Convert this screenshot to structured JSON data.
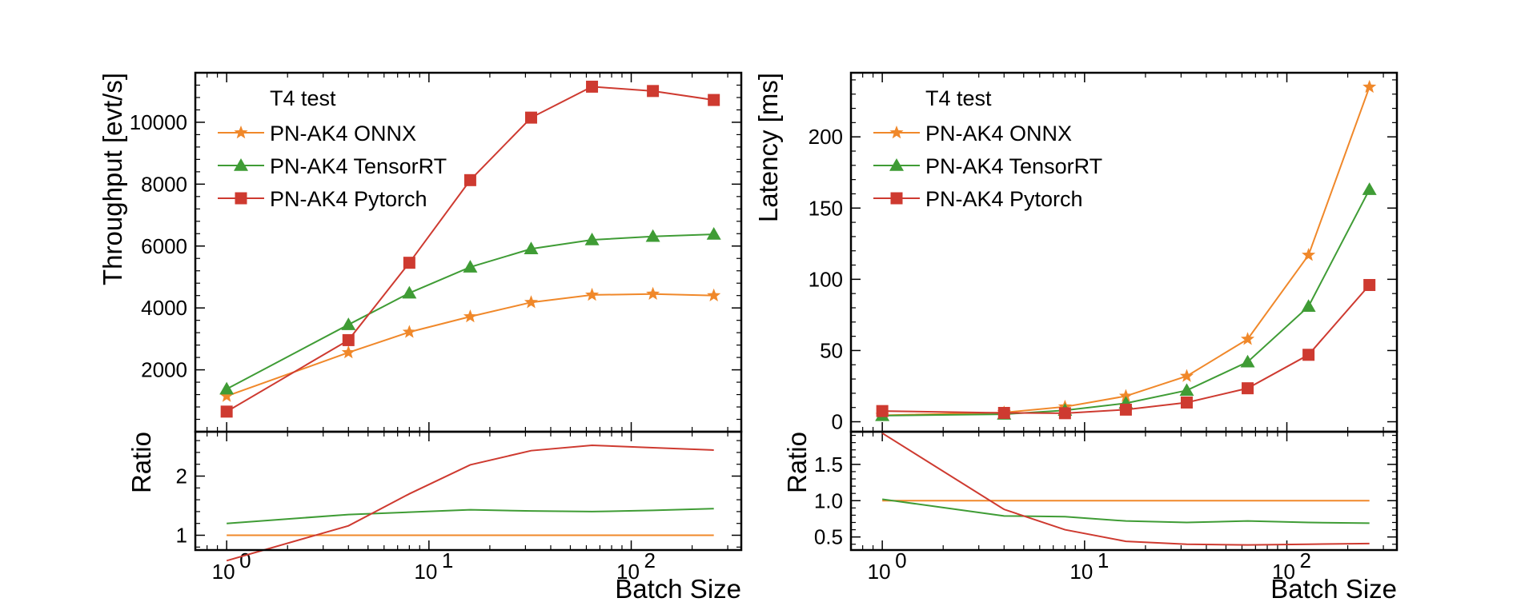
{
  "figure": {
    "xscale": "log",
    "xticks_major": [
      1,
      10,
      100
    ],
    "xtick_labels": [
      "10",
      "10",
      "10"
    ],
    "xtick_exponents": [
      "0",
      "1",
      "2"
    ]
  },
  "chart_data": [
    {
      "type": "line",
      "panel": "left",
      "title": "",
      "legend_title": "T4 test",
      "legend_location": "upper-left",
      "xlabel": "Batch Size",
      "ylabel": "Throughput [evt/s]",
      "xscale": "log",
      "xlim": [
        0.7,
        350
      ],
      "ylim": [
        0,
        11600
      ],
      "yticks": [
        2000,
        4000,
        6000,
        8000,
        10000
      ],
      "x": [
        1,
        4,
        8,
        16,
        32,
        64,
        128,
        256
      ],
      "series": [
        {
          "name": "PN-AK4 ONNX",
          "color": "#f0882a",
          "marker": "star",
          "values": [
            1150,
            2560,
            3220,
            3720,
            4180,
            4420,
            4450,
            4400
          ]
        },
        {
          "name": "PN-AK4 TensorRT",
          "color": "#3f9c35",
          "marker": "triangle",
          "values": [
            1380,
            3460,
            4480,
            5320,
            5910,
            6200,
            6310,
            6380
          ]
        },
        {
          "name": "PN-AK4 Pytorch",
          "color": "#ce3a30",
          "marker": "square",
          "values": [
            650,
            2960,
            5460,
            8130,
            10150,
            11150,
            11010,
            10720
          ]
        }
      ],
      "ratio": {
        "ylabel": "Ratio",
        "ylim": [
          0.75,
          2.75
        ],
        "yticks": [
          1,
          2
        ],
        "ytick_labels": [
          "1",
          "2"
        ],
        "series": [
          {
            "name": "PN-AK4 ONNX",
            "color": "#f0882a",
            "values": [
              1.0,
              1.0,
              1.0,
              1.0,
              1.0,
              1.0,
              1.0,
              1.0
            ]
          },
          {
            "name": "PN-AK4 TensorRT",
            "color": "#3f9c35",
            "values": [
              1.2,
              1.35,
              1.39,
              1.43,
              1.41,
              1.4,
              1.42,
              1.45
            ]
          },
          {
            "name": "PN-AK4 Pytorch",
            "color": "#ce3a30",
            "values": [
              0.57,
              1.16,
              1.7,
              2.19,
              2.43,
              2.52,
              2.48,
              2.44
            ]
          }
        ]
      }
    },
    {
      "type": "line",
      "panel": "right",
      "title": "",
      "legend_title": "T4 test",
      "legend_location": "upper-left",
      "xlabel": "Batch Size",
      "ylabel": "Latency [ms]",
      "xscale": "log",
      "xlim": [
        0.7,
        350
      ],
      "ylim": [
        -7,
        245
      ],
      "yticks": [
        0,
        50,
        100,
        150,
        200
      ],
      "x": [
        1,
        4,
        8,
        16,
        32,
        64,
        128,
        256
      ],
      "series": [
        {
          "name": "PN-AK4 ONNX",
          "color": "#f0882a",
          "marker": "star",
          "values": [
            4.5,
            6.5,
            10.5,
            18,
            32,
            58,
            117,
            235
          ]
        },
        {
          "name": "PN-AK4 TensorRT",
          "color": "#3f9c35",
          "marker": "triangle",
          "values": [
            4.3,
            5.3,
            8.0,
            13.0,
            22,
            42,
            81,
            163
          ]
        },
        {
          "name": "PN-AK4 Pytorch",
          "color": "#ce3a30",
          "marker": "square",
          "values": [
            7.5,
            6.2,
            6.0,
            8.5,
            13.5,
            23.5,
            47,
            96
          ]
        }
      ],
      "ratio": {
        "ylabel": "Ratio",
        "ylim": [
          0.32,
          1.95
        ],
        "yticks": [
          0.5,
          1.0,
          1.5
        ],
        "ytick_labels": [
          "0.5",
          "1.0",
          "1.5"
        ],
        "series": [
          {
            "name": "PN-AK4 ONNX",
            "color": "#f0882a",
            "values": [
              1.0,
              1.0,
              1.0,
              1.0,
              1.0,
              1.0,
              1.0,
              1.0
            ]
          },
          {
            "name": "PN-AK4 TensorRT",
            "color": "#3f9c35",
            "values": [
              1.02,
              0.79,
              0.78,
              0.72,
              0.7,
              0.72,
              0.7,
              0.69
            ]
          },
          {
            "name": "PN-AK4 Pytorch",
            "color": "#ce3a30",
            "values": [
              1.93,
              0.88,
              0.6,
              0.44,
              0.4,
              0.39,
              0.4,
              0.41
            ]
          }
        ]
      }
    }
  ]
}
